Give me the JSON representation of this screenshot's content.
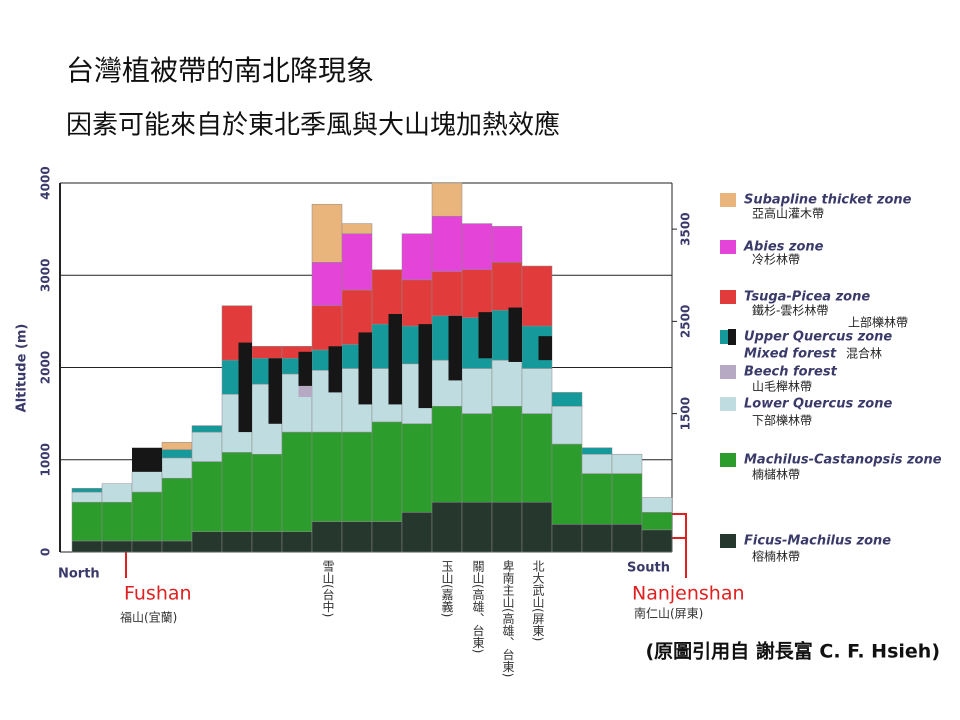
{
  "chart_data": {
    "type": "bar",
    "stacked": true,
    "title": "台灣植被帶的南北降現象",
    "subtitle": "因素可能來自於東北季風與大山塊加熱效應",
    "ylabel": "Altitude (m)",
    "categories": [
      null,
      null,
      null,
      null,
      null,
      null,
      null,
      null,
      null,
      null,
      null,
      null,
      null,
      null,
      null,
      null,
      null,
      null,
      null,
      null
    ],
    "ylim": [
      0,
      4000
    ],
    "yticks": [
      0,
      1000,
      2000,
      3000,
      4000
    ],
    "y2lim": [
      0,
      4000
    ],
    "y2ticks": [
      1500,
      2500,
      3500
    ],
    "grid": true,
    "series": [
      {
        "name": "Ficus-Machilus zone",
        "name_zh": "榕楠林帶",
        "color": "#26382e",
        "values": [
          120,
          120,
          120,
          120,
          220,
          220,
          220,
          220,
          330,
          330,
          330,
          430,
          540,
          540,
          540,
          540,
          300,
          300,
          300,
          240
        ]
      },
      {
        "name": "Machilus-Castanopsis zone",
        "name_zh": "楠櫧林帶",
        "color": "#2c9c2c",
        "values": [
          420,
          420,
          530,
          680,
          760,
          860,
          840,
          1080,
          970,
          970,
          1080,
          960,
          1040,
          960,
          1040,
          960,
          870,
          550,
          550,
          190
        ]
      },
      {
        "name": "Lower Quercus zone",
        "name_zh": "下部櫟林帶",
        "color": "#bfdce0",
        "values": [
          110,
          200,
          220,
          220,
          320,
          630,
          760,
          630,
          670,
          690,
          580,
          650,
          500,
          490,
          500,
          490,
          410,
          210,
          210,
          160
        ]
      },
      {
        "name": "Upper Quercus zone",
        "name_zh": "上部櫟林帶",
        "color": "#15999a",
        "values": [
          40,
          null,
          null,
          90,
          70,
          370,
          280,
          170,
          220,
          260,
          480,
          410,
          480,
          550,
          540,
          460,
          150,
          70,
          null,
          null
        ]
      },
      {
        "name": "Tsuga-Picea zone",
        "name_zh": "鐵杉-雲杉林帶",
        "color": "#e23b3b",
        "values": [
          null,
          null,
          null,
          null,
          null,
          590,
          130,
          130,
          480,
          590,
          590,
          500,
          480,
          520,
          520,
          650,
          null,
          null,
          null,
          null
        ]
      },
      {
        "name": "Abies zone",
        "name_zh": "冷杉林帶",
        "color": "#e445d8",
        "values": [
          null,
          null,
          null,
          null,
          null,
          null,
          null,
          null,
          470,
          610,
          null,
          500,
          600,
          500,
          390,
          null,
          null,
          null,
          null,
          null
        ]
      },
      {
        "name": "Subapline thicket zone",
        "name_zh": "亞高山灌木帶",
        "color": "#eab57c",
        "values": [
          null,
          null,
          null,
          80,
          null,
          null,
          null,
          null,
          630,
          110,
          null,
          null,
          360,
          null,
          null,
          null,
          null,
          null,
          null,
          null
        ]
      }
    ],
    "overlays": [
      {
        "name": "Mixed forest",
        "name_zh": "混合林",
        "color": "#161616",
        "ranges": [
          null,
          null,
          [
            870,
            1130
          ],
          null,
          null,
          [
            1300,
            2270
          ],
          [
            1390,
            2100
          ],
          [
            1800,
            2170
          ],
          [
            1730,
            2230
          ],
          [
            1600,
            2380
          ],
          [
            1600,
            2580
          ],
          [
            1560,
            2470
          ],
          [
            1860,
            2560
          ],
          [
            2100,
            2600
          ],
          [
            2060,
            2650
          ],
          [
            2080,
            2340
          ],
          null,
          null,
          null,
          null
        ]
      },
      {
        "name": "Beech forest",
        "name_zh": "山毛櫸林帶",
        "color": "#b6a9c4",
        "ranges": [
          null,
          null,
          null,
          null,
          null,
          null,
          null,
          [
            1680,
            1800
          ],
          null,
          null,
          null,
          null,
          null,
          null,
          null,
          null,
          null,
          null,
          null,
          null
        ]
      }
    ],
    "annotations": [
      "North",
      "South",
      "Fushan",
      "福山(宜蘭)",
      "Nanjenshan",
      "南仁山(屏東)",
      "雪山(台中)",
      "玉山(嘉義)",
      "關山(高雄、台東)",
      "卑南主山(高雄、台東)",
      "北大武山(屏東)"
    ],
    "source": "(原圖引用自 謝長富 C. F. Hsieh)"
  }
}
